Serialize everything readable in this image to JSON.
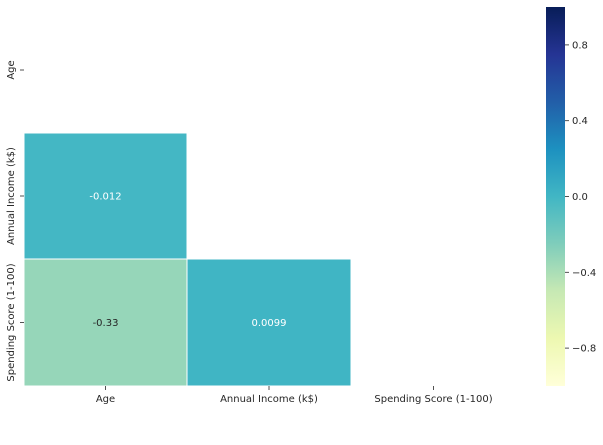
{
  "chart_data": {
    "type": "heatmap",
    "variables": [
      "Age",
      "Annual Income (k$)",
      "Spending Score (1-100)"
    ],
    "mask": "upper-triangle-including-diagonal",
    "cells": [
      {
        "row": "Annual Income (k$)",
        "col": "Age",
        "value": -0.012,
        "label": "-0.012"
      },
      {
        "row": "Spending Score (1-100)",
        "col": "Age",
        "value": -0.33,
        "label": "-0.33"
      },
      {
        "row": "Spending Score (1-100)",
        "col": "Annual Income (k$)",
        "value": 0.0099,
        "label": "0.0099"
      }
    ],
    "colormap": "YlGnBu",
    "colorbar": {
      "vmin": -1,
      "vmax": 1,
      "ticks": [
        0.8,
        0.4,
        0.0,
        -0.4,
        -0.8
      ],
      "tick_labels": [
        "0.8",
        "0.4",
        "0.0",
        "−0.4",
        "−0.8"
      ]
    },
    "title": "",
    "xlabel": "",
    "ylabel": "",
    "grid": false,
    "legend": "colorbar-right",
    "cell_border_color": "#ffffff"
  }
}
